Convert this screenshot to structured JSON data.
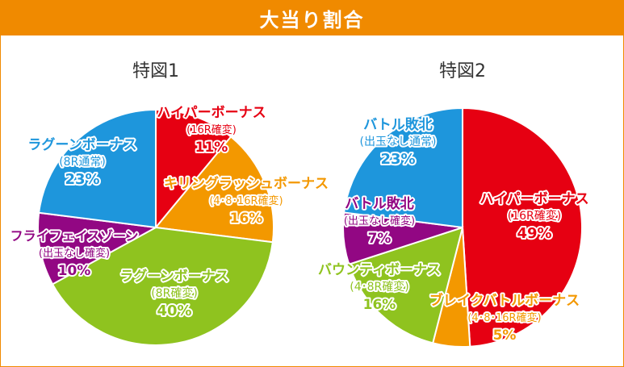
{
  "header": {
    "title": "大当り割合"
  },
  "chart_data": [
    {
      "type": "pie",
      "title": "特図1",
      "slices": [
        {
          "name": "ハイパーボーナス",
          "sub": "(16R確変)",
          "value": 11,
          "label": "11%",
          "color": "#e60012"
        },
        {
          "name": "キリングラッシュボーナス",
          "sub": "(4･8･16R確変)",
          "value": 16,
          "label": "16%",
          "color": "#f39800"
        },
        {
          "name": "ラグーンボーナス",
          "sub": "(8R確変)",
          "value": 40,
          "label": "40%",
          "color": "#8fc31f"
        },
        {
          "name": "フライフェイスゾーン",
          "sub": "(出玉なし確変)",
          "value": 10,
          "label": "10%",
          "color": "#920783"
        },
        {
          "name": "ラグーンボーナス",
          "sub": "(8R通常)",
          "value": 23,
          "label": "23%",
          "color": "#1e96dc"
        }
      ]
    },
    {
      "type": "pie",
      "title": "特図2",
      "slices": [
        {
          "name": "ハイパーボーナス",
          "sub": "(16R確変)",
          "value": 49,
          "label": "49%",
          "color": "#e60012"
        },
        {
          "name": "ブレイクバトルボーナス",
          "sub": "(4･8･16R確変)",
          "value": 5,
          "label": "5%",
          "color": "#f39800"
        },
        {
          "name": "バウンティボーナス",
          "sub": "(4･8R確変)",
          "value": 16,
          "label": "16%",
          "color": "#8fc31f"
        },
        {
          "name": "バトル敗北",
          "sub": "(出玉なし確変)",
          "value": 7,
          "label": "7%",
          "color": "#920783"
        },
        {
          "name": "バトル敗北",
          "sub": "(出玉なし通常)",
          "value": 23,
          "label": "23%",
          "color": "#1e96dc"
        }
      ]
    }
  ]
}
